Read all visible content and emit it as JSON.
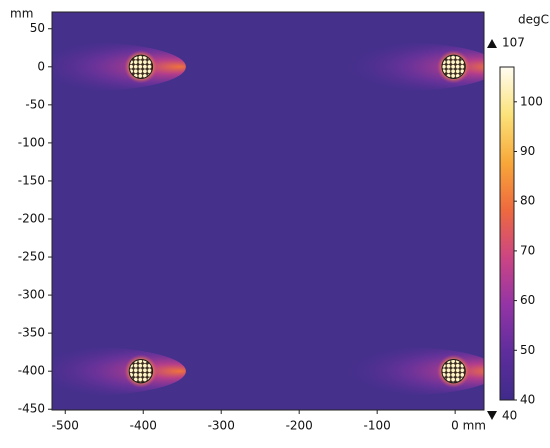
{
  "chart_data": {
    "type": "heatmap",
    "x_unit_label": "mm",
    "y_unit_label": "mm",
    "xlim": [
      -517,
      37
    ],
    "ylim": [
      -451,
      72
    ],
    "xticks": [
      -500,
      -400,
      -300,
      -200,
      -100,
      {
        "value": 0,
        "label": "0 mm"
      }
    ],
    "yticks": [
      50,
      0,
      -50,
      -100,
      -150,
      -200,
      -250,
      -300,
      -350,
      -400,
      -450
    ],
    "background_color": "#45308c",
    "cables": {
      "x": [
        -403,
        -2,
        -403,
        -2
      ],
      "y": [
        0,
        0,
        -400,
        -400
      ],
      "radius": 15
    },
    "colorbar": {
      "label": "degC",
      "lim": [
        40,
        107
      ],
      "ticks": [
        40,
        50,
        60,
        70,
        80,
        90,
        100
      ],
      "colormap": [
        "#3f2b8a",
        "#5e2d9c",
        "#9434a6",
        "#cc4583",
        "#ee6a3e",
        "#f8a83a",
        "#fbe27a",
        "#fffdf2"
      ]
    },
    "max": 107,
    "min": 40
  }
}
